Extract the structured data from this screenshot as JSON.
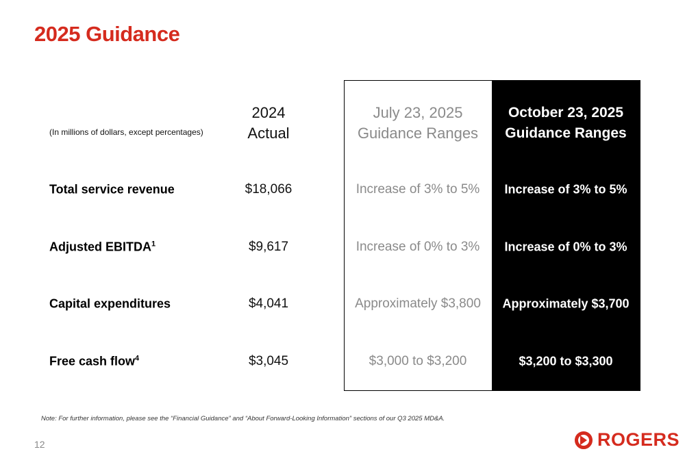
{
  "header": {
    "title": "2025 Guidance"
  },
  "table": {
    "note": "(In millions of dollars, except percentages)",
    "columns": [
      [
        "2024",
        "Actual"
      ],
      [
        "July 23, 2025",
        "Guidance Ranges"
      ],
      [
        "October 23, 2025",
        "Guidance Ranges"
      ]
    ],
    "rows": [
      {
        "label": "Total service revenue",
        "cells": [
          "$18,066",
          "Increase of 3% to 5%",
          "Increase of 3% to 5%"
        ]
      },
      {
        "label": "Adjusted EBITDA",
        "footnote": "1",
        "cells": [
          "$9,617",
          "Increase of 0% to 3%",
          "Increase of 0% to 3%"
        ]
      },
      {
        "label": "Capital expenditures",
        "cells": [
          "$4,041",
          "Approximately $3,800",
          "Approximately $3,700"
        ]
      },
      {
        "label": "Free cash flow",
        "footnote": "4",
        "cells": [
          "$3,045",
          "$3,000 to $3,200",
          "$3,200 to $3,300"
        ]
      }
    ]
  },
  "footer": {
    "note": "Note: For further information, please see the “Financial Guidance” and “About Forward-Looking Information” sections of our Q3 2025 MD&A.",
    "page": "12",
    "logo": "ROGERS"
  }
}
